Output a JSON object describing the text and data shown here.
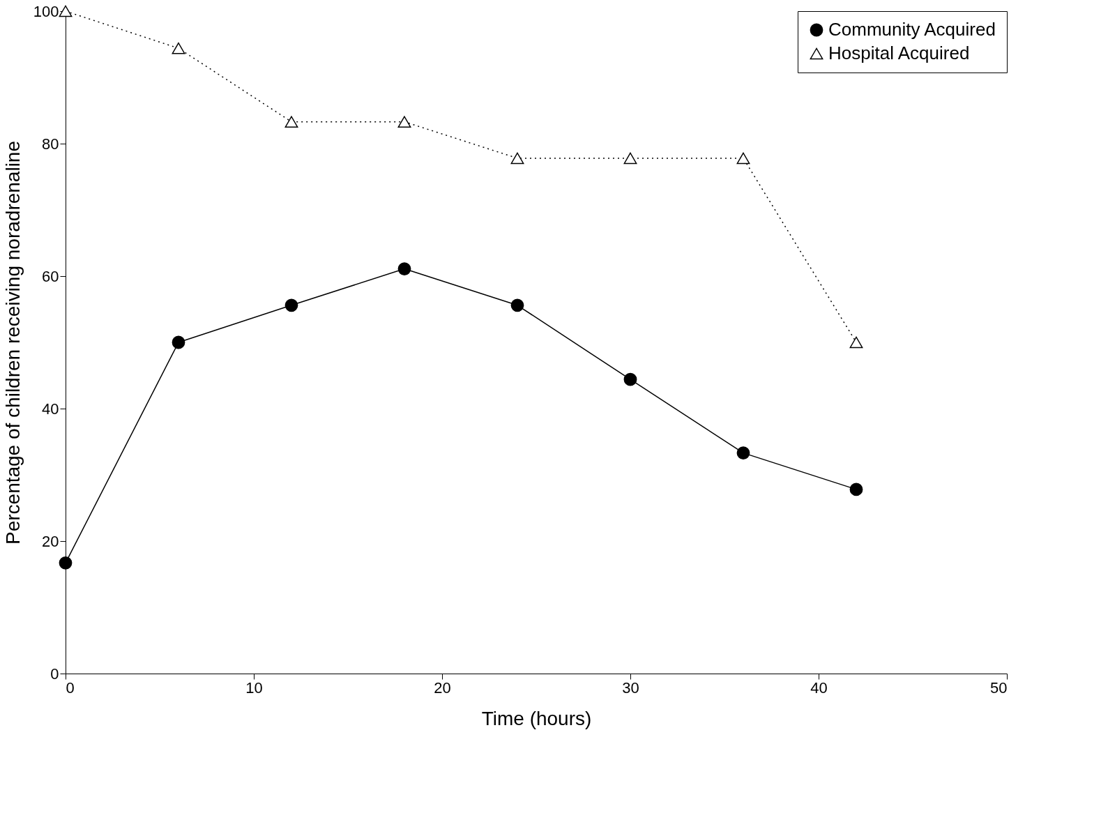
{
  "chart_data": {
    "type": "line",
    "xlabel": "Time (hours)",
    "ylabel": "Percentage of children receiving noradrenaline",
    "x": [
      0,
      6,
      12,
      18,
      24,
      30,
      36,
      42
    ],
    "series": [
      {
        "name": "Community Acquired",
        "color": "#000000",
        "marker": "circle",
        "line_style": "solid",
        "values": [
          16.7,
          50,
          55.6,
          61.1,
          55.6,
          44.4,
          33.3,
          27.8
        ]
      },
      {
        "name": "Hospital Acquired",
        "color": "#000000",
        "marker": "triangle",
        "line_style": "dotted",
        "values": [
          100,
          94.4,
          83.3,
          83.3,
          77.8,
          77.8,
          77.8,
          50
        ]
      }
    ],
    "xlim": [
      0,
      50
    ],
    "xticks": [
      0,
      10,
      20,
      30,
      40,
      50
    ],
    "ylim": [
      0,
      100
    ],
    "yticks": [
      0,
      20,
      40,
      60,
      80,
      100
    ],
    "grid": false,
    "legend": "top right"
  }
}
